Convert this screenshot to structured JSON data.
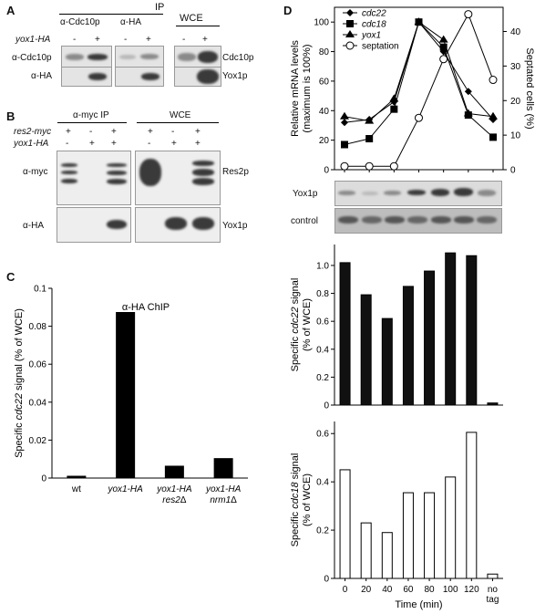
{
  "panels": {
    "A": {
      "letter": "A",
      "header_ip": "IP",
      "header_wce": "WCE",
      "lane_group1": "α-Cdc10p",
      "lane_group2": "α-HA",
      "row_label_yox1": "yox1-HA",
      "signs": [
        "-",
        "+",
        "-",
        "+",
        "-",
        "+"
      ],
      "blot_rows": [
        "α-Cdc10p",
        "α-HA"
      ],
      "protein_labels": [
        "Cdc10p",
        "Yox1p"
      ]
    },
    "B": {
      "letter": "B",
      "header_ip": "α-myc IP",
      "header_wce": "WCE",
      "row_label_res2": "res2-myc",
      "row_label_yox1": "yox1-HA",
      "signs_res2": [
        "+",
        "-",
        "+",
        "+",
        "-",
        "+"
      ],
      "signs_yox1": [
        "-",
        "+",
        "+",
        "-",
        "+",
        "+"
      ],
      "blot_rows": [
        "α-myc",
        "α-HA"
      ],
      "protein_labels": [
        "Res2p",
        "Yox1p"
      ]
    },
    "C": {
      "letter": "C",
      "title": "α-HA ChIP"
    },
    "D": {
      "letter": "D",
      "legend": [
        "cdc22",
        "cdc18",
        "yox1",
        "septation"
      ],
      "blot_rows": [
        "Yox1p",
        "control"
      ]
    }
  },
  "chart_data": [
    {
      "id": "C",
      "type": "bar",
      "title": "α-HA ChIP",
      "ylabel": "Specific cdc22 signal (% of WCE)",
      "ylim": [
        0,
        0.1
      ],
      "yticks": [
        "0",
        "0.02",
        "0.04",
        "0.06",
        "0.08",
        "0.1"
      ],
      "categories": [
        [
          "wt"
        ],
        [
          "yox1-HA"
        ],
        [
          "yox1-HA",
          "res2Δ"
        ],
        [
          "yox1-HA",
          "nrm1Δ"
        ]
      ],
      "values": [
        0.0012,
        0.0875,
        0.0065,
        0.0105
      ]
    },
    {
      "id": "D-top",
      "type": "line",
      "ylabel": "Relative mRNA levels (maximum is 100%)",
      "ylabel2": "Septated cells (%)",
      "x": [
        0,
        20,
        40,
        60,
        80,
        100,
        120
      ],
      "ylim": [
        0,
        110
      ],
      "ylim2": [
        0,
        47
      ],
      "yticks": [
        "0",
        "20",
        "40",
        "60",
        "80",
        "100"
      ],
      "yticks2": [
        "0",
        "10",
        "20",
        "30",
        "40"
      ],
      "series": [
        {
          "name": "cdc22",
          "marker": "diamond",
          "values": [
            32,
            34,
            46,
            100,
            80,
            53,
            34
          ]
        },
        {
          "name": "cdc18",
          "marker": "square",
          "values": [
            17,
            21,
            41,
            100,
            83,
            37,
            22
          ]
        },
        {
          "name": "yox1",
          "marker": "triangle",
          "values": [
            36,
            33,
            48,
            100,
            88,
            38,
            36
          ]
        },
        {
          "name": "septation",
          "marker": "circle",
          "axis": "right",
          "values": [
            1,
            1,
            1,
            15,
            32,
            45,
            26
          ]
        }
      ]
    },
    {
      "id": "D-mid",
      "type": "bar",
      "ylabel": "Specific cdc22 signal (% of WCE)",
      "ylim": [
        0,
        1.15
      ],
      "yticks": [
        "0",
        "0.2",
        "0.4",
        "0.6",
        "0.8",
        "1.0"
      ],
      "categories": [
        "0",
        "20",
        "40",
        "60",
        "80",
        "100",
        "120",
        "no tag"
      ],
      "values": [
        1.02,
        0.79,
        0.62,
        0.85,
        0.96,
        1.09,
        1.07,
        0.015
      ],
      "fill": "#111111"
    },
    {
      "id": "D-bottom",
      "type": "bar",
      "ylabel": "Specific cdc18 signal (% of WCE)",
      "xlabel": "Time (min)",
      "ylim": [
        0,
        0.65
      ],
      "yticks": [
        "0",
        "0.2",
        "0.4",
        "0.6"
      ],
      "xticks": [
        "0",
        "20",
        "40",
        "60",
        "80",
        "100",
        "120"
      ],
      "xtick_extra": [
        "no",
        "tag"
      ],
      "categories": [
        "0",
        "20",
        "40",
        "60",
        "80",
        "100",
        "120",
        "no tag"
      ],
      "values": [
        0.45,
        0.23,
        0.19,
        0.355,
        0.355,
        0.42,
        0.605,
        0.018
      ],
      "fill": "#ffffff"
    }
  ]
}
